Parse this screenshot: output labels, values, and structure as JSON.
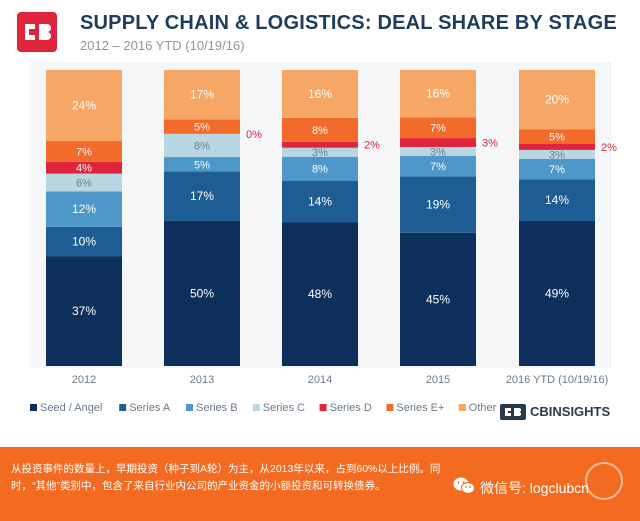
{
  "header": {
    "title": "SUPPLY CHAIN & LOGISTICS: DEAL SHARE BY STAGE",
    "subtitle": "2012 – 2016 YTD (10/19/16)"
  },
  "brand": {
    "name": "CBINSIGHTS"
  },
  "footer": {
    "text": "从投资事件的数量上，早期投资（种子到A轮）为主，从2013年以来，占到60%以上比例。同时，“其他”类别中，包含了来自行业内公司的产业资金的小额投资和可转换债券。",
    "wechat_label": "微信号: logclubcn"
  },
  "chart_data": {
    "type": "bar",
    "stacked": true,
    "categories": [
      "2012",
      "2013",
      "2014",
      "2015",
      "2016 YTD (10/19/16)"
    ],
    "series": [
      {
        "name": "Seed / Angel",
        "color": "#0c2f5b",
        "values": [
          37,
          50,
          48,
          45,
          49
        ]
      },
      {
        "name": "Series A",
        "color": "#1d5d94",
        "values": [
          10,
          17,
          14,
          19,
          14
        ]
      },
      {
        "name": "Series B",
        "color": "#4d98c8",
        "values": [
          12,
          5,
          8,
          7,
          7
        ]
      },
      {
        "name": "Series C",
        "color": "#b9d7e2",
        "values": [
          6,
          8,
          3,
          3,
          3
        ]
      },
      {
        "name": "Series D",
        "color": "#e0243c",
        "values": [
          4,
          0,
          2,
          3,
          2
        ]
      },
      {
        "name": "Series E+",
        "color": "#f26b2a",
        "values": [
          7,
          5,
          8,
          7,
          5
        ]
      },
      {
        "name": "Other",
        "color": "#f6a766",
        "values": [
          24,
          17,
          16,
          16,
          20
        ]
      }
    ],
    "outside_labels": [
      {
        "category": "2013",
        "series": "Series D",
        "text": "0%"
      },
      {
        "category": "2014",
        "series": "Series D",
        "text": "2%"
      },
      {
        "category": "2015",
        "series": "Series D",
        "text": "3%"
      },
      {
        "category": "2016 YTD (10/19/16)",
        "series": "Series D",
        "text": "2%"
      }
    ],
    "legend": "bottom",
    "grid": false
  }
}
